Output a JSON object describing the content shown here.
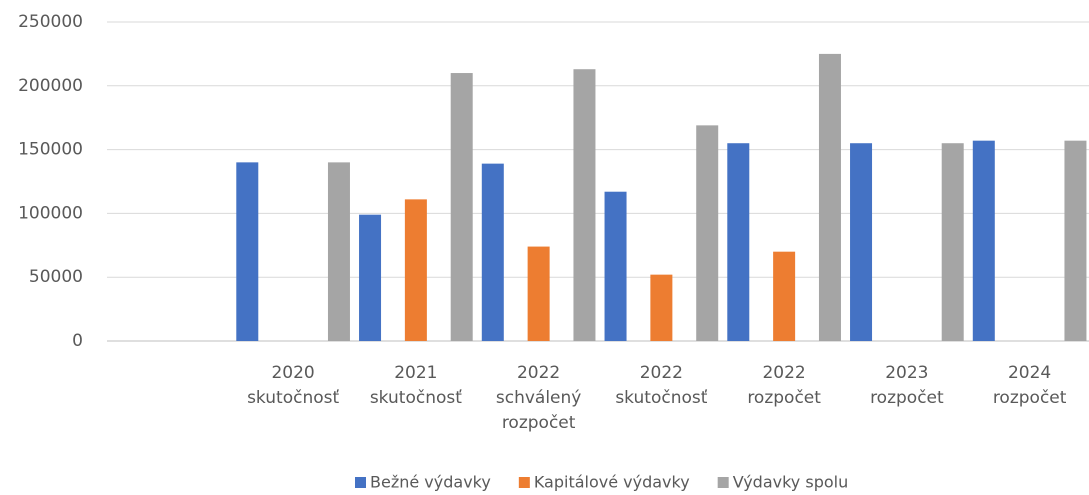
{
  "chart_data": {
    "type": "bar",
    "categories": [
      null,
      [
        "2020",
        "skutočnosť"
      ],
      [
        "2021",
        "skutočnosť"
      ],
      [
        "2022",
        "schválený",
        "rozpočet"
      ],
      [
        "2022",
        "skutočnosť"
      ],
      [
        "2022",
        "rozpočet"
      ],
      [
        "2023",
        "rozpočet"
      ],
      [
        "2024",
        "rozpočet"
      ]
    ],
    "series": [
      {
        "name": "Bežné výdavky",
        "color": "#4472c4",
        "values": [
          null,
          140000,
          99000,
          139000,
          117000,
          155000,
          155000,
          157000
        ]
      },
      {
        "name": "Kapitálové výdavky",
        "color": "#ed7d31",
        "values": [
          null,
          null,
          111000,
          74000,
          52000,
          70000,
          null,
          null
        ]
      },
      {
        "name": "Výdavky spolu",
        "color": "#a5a5a5",
        "values": [
          null,
          140000,
          210000,
          213000,
          169000,
          225000,
          155000,
          157000
        ]
      }
    ],
    "ylim": [
      0,
      250000
    ],
    "yticks": [
      0,
      50000,
      100000,
      150000,
      200000,
      250000
    ],
    "grid": true,
    "legend": "bottom"
  }
}
